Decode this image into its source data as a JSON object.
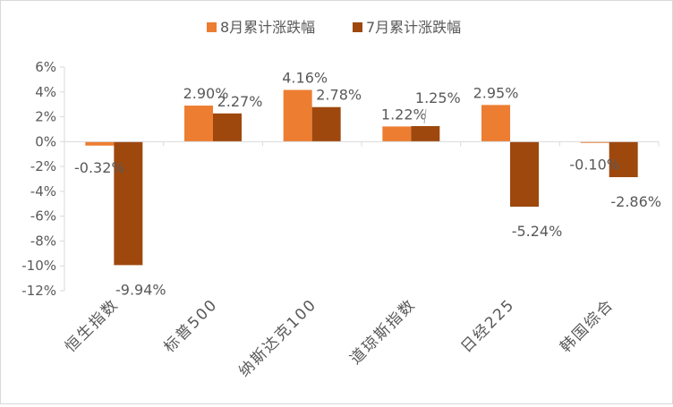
{
  "chart_data": {
    "type": "bar",
    "categories": [
      "恒生指数",
      "标普500",
      "纳斯达克100",
      "道琼斯指数",
      "日经225",
      "韩国综合"
    ],
    "series": [
      {
        "name": "8月累计涨跌幅",
        "values": [
          -0.32,
          2.9,
          4.16,
          1.22,
          2.95,
          -0.1
        ],
        "labels": [
          "-0.32%",
          "2.90%",
          "4.16%",
          "1.22%",
          "2.95%",
          "-0.10%"
        ]
      },
      {
        "name": "7月累计涨跌幅",
        "values": [
          -9.94,
          2.27,
          2.78,
          1.25,
          -5.24,
          -2.86
        ],
        "labels": [
          "-9.94%",
          "2.27%",
          "2.78%",
          "1.25%",
          "-5.24%",
          "-2.86%"
        ]
      }
    ],
    "ylim": [
      -12,
      6
    ],
    "yticks": [
      6,
      4,
      2,
      0,
      -2,
      -4,
      -6,
      -8,
      -10,
      -12
    ],
    "ytick_labels": [
      "6%",
      "4%",
      "2%",
      "0%",
      "-2%",
      "-4%",
      "-6%",
      "-8%",
      "-10%",
      "-12%"
    ],
    "legend": "top-center",
    "grid": false,
    "colors": [
      "#ED7D31",
      "#9E480E"
    ]
  }
}
